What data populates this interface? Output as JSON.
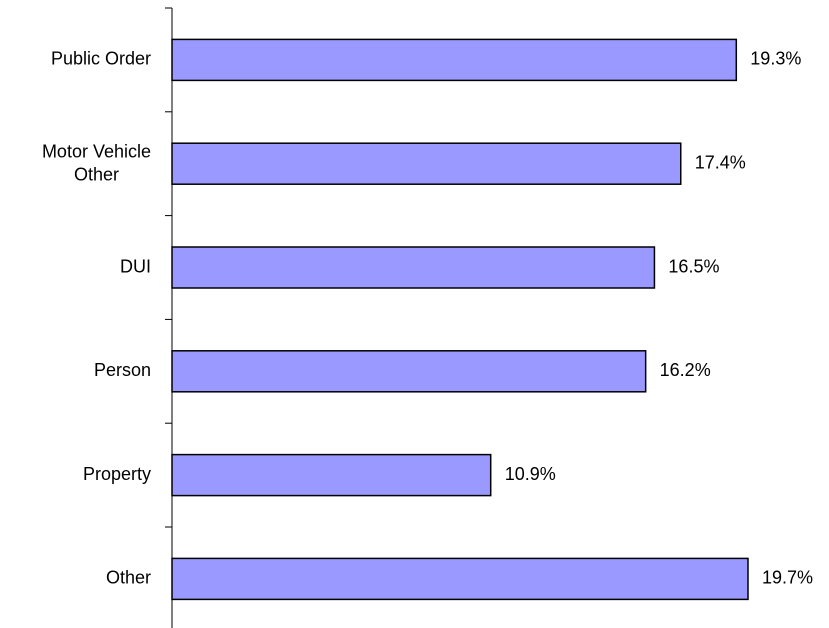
{
  "chart_data": {
    "type": "hbar",
    "categories": [
      "Public Order",
      "Motor Vehicle Other",
      "DUI",
      "Person",
      "Property",
      "Other"
    ],
    "values": [
      19.3,
      17.4,
      16.5,
      16.2,
      10.9,
      19.7
    ],
    "value_labels": [
      "19.3%",
      "17.4%",
      "16.5%",
      "16.2%",
      "10.9%",
      "19.7%"
    ],
    "color": "#9999ff"
  }
}
